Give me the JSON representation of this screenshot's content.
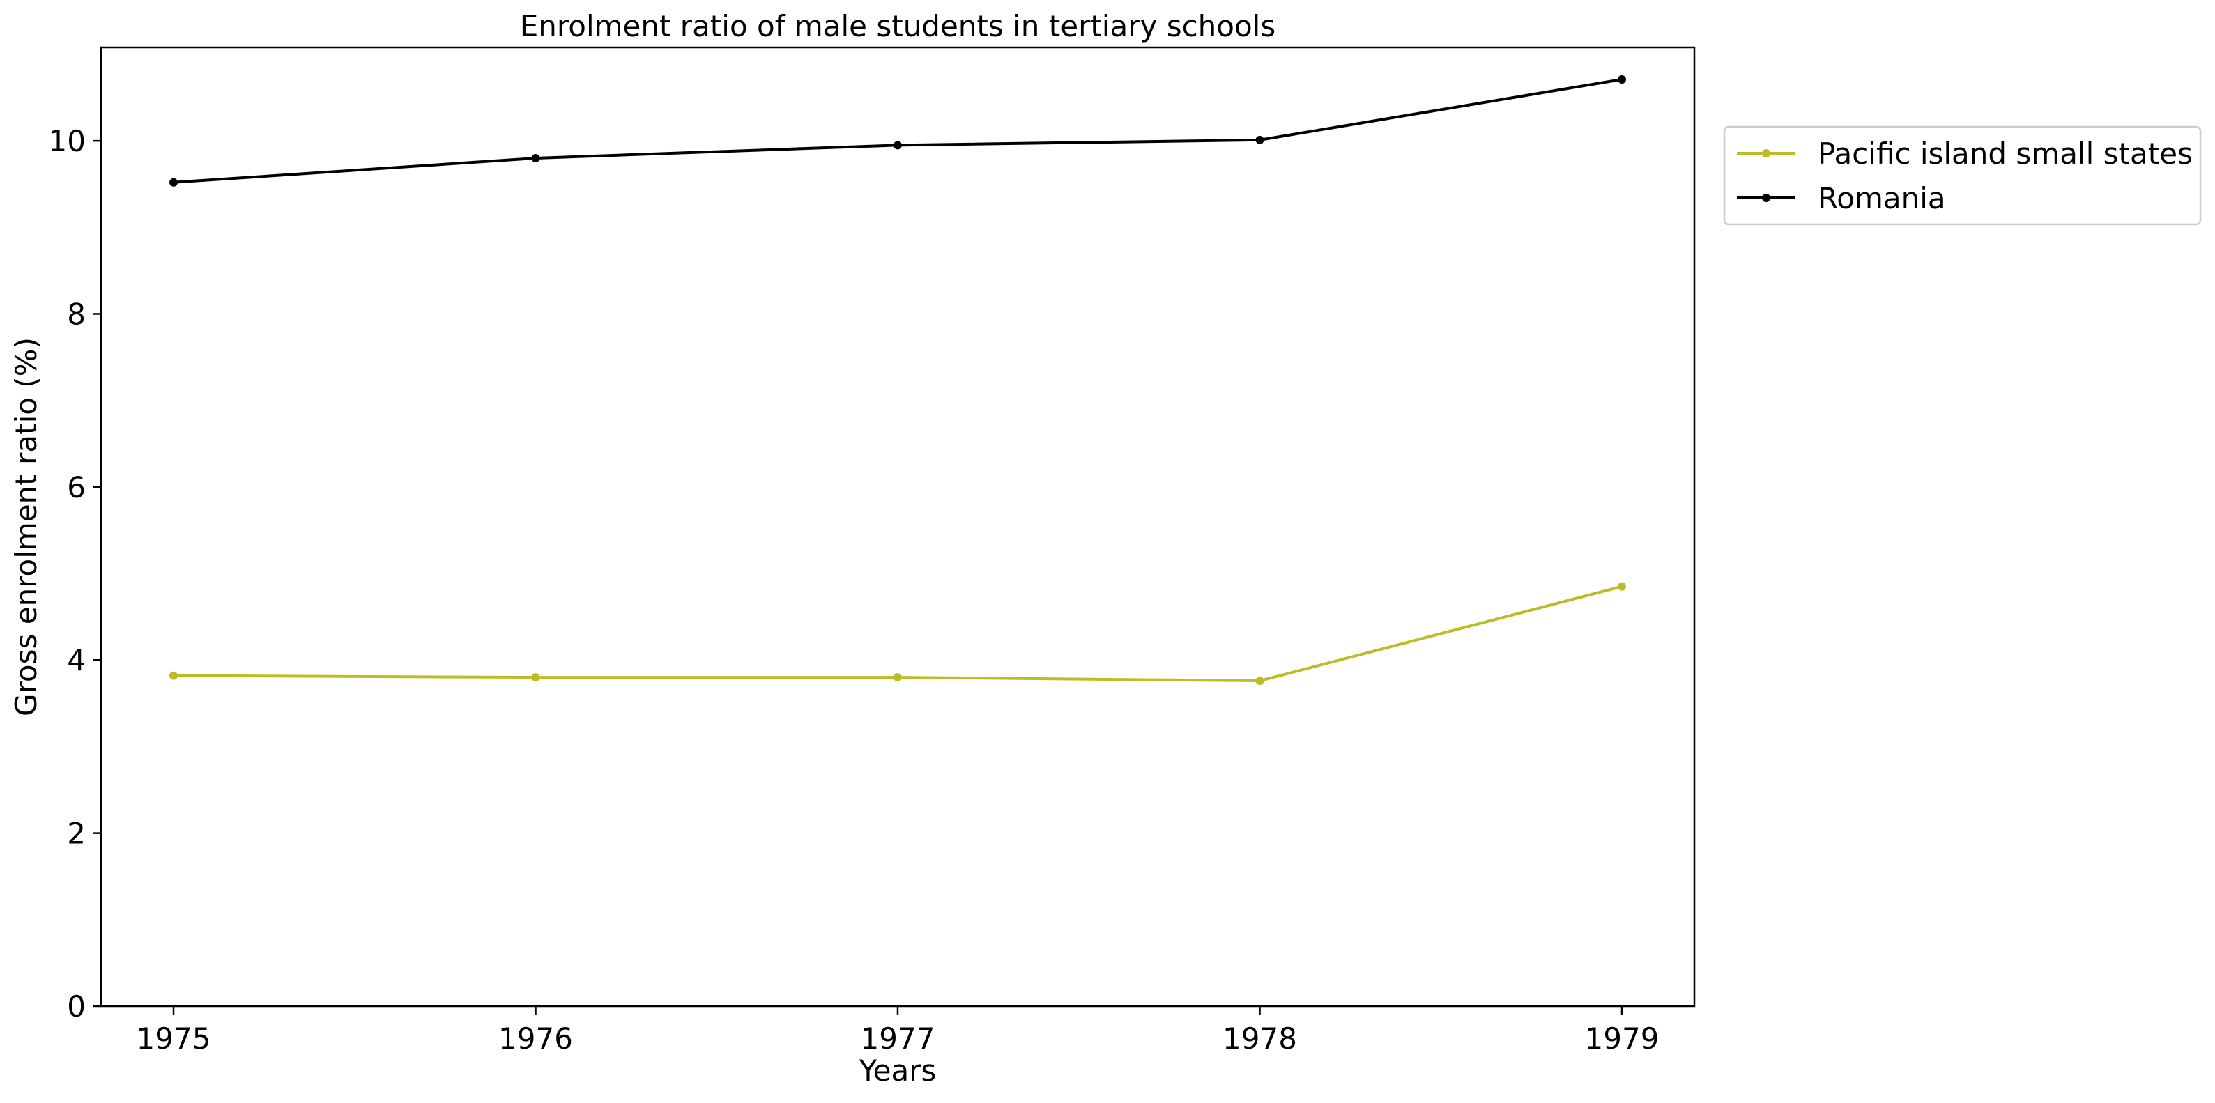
{
  "chart_data": {
    "type": "line",
    "title": "Enrolment ratio of male students in tertiary schools",
    "xlabel": "Years",
    "ylabel": "Gross enrolment ratio (%)",
    "x": [
      "1975",
      "1976",
      "1977",
      "1978",
      "1979"
    ],
    "y_ticks": [
      "0",
      "2",
      "4",
      "6",
      "8",
      "10"
    ],
    "ylim": [
      0,
      11.08
    ],
    "grid": false,
    "legend_position": "outside right, top",
    "series": [
      {
        "name": "Pacific island small states",
        "color": "#bcbd22",
        "marker": "dot",
        "values": [
          3.82,
          3.8,
          3.8,
          3.76,
          4.85
        ]
      },
      {
        "name": "Romania",
        "color": "#000000",
        "marker": "dot",
        "values": [
          9.52,
          9.8,
          9.95,
          10.01,
          10.71
        ]
      }
    ]
  }
}
